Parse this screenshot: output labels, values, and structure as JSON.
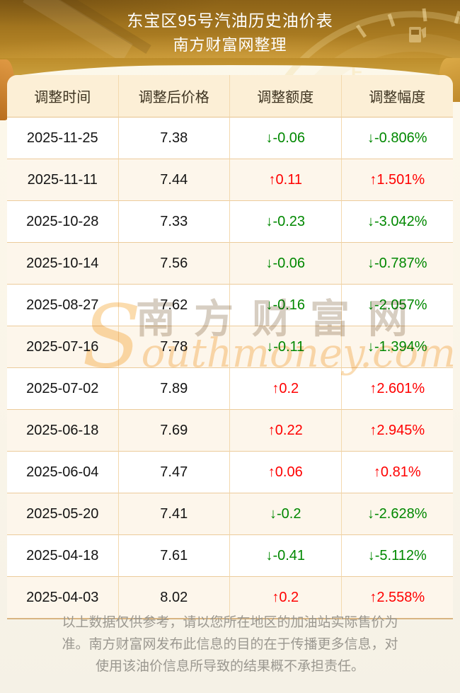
{
  "header": {
    "title": "东宝区95号汽油历史油价表",
    "subtitle": "南方财富网整理"
  },
  "chart_data": {
    "type": "table",
    "title": "东宝区95号汽油历史油价表",
    "subtitle": "南方财富网整理",
    "columns": [
      "调整时间",
      "调整后价格",
      "调整额度",
      "调整幅度"
    ],
    "rows": [
      {
        "date": "2025-11-25",
        "price": "7.38",
        "change": -0.06,
        "change_display": "↓-0.06",
        "percent": "-0.806%",
        "percent_display": "↓-0.806%",
        "direction": "down"
      },
      {
        "date": "2025-11-11",
        "price": "7.44",
        "change": 0.11,
        "change_display": "↑0.11",
        "percent": "1.501%",
        "percent_display": "↑1.501%",
        "direction": "up"
      },
      {
        "date": "2025-10-28",
        "price": "7.33",
        "change": -0.23,
        "change_display": "↓-0.23",
        "percent": "-3.042%",
        "percent_display": "↓-3.042%",
        "direction": "down"
      },
      {
        "date": "2025-10-14",
        "price": "7.56",
        "change": -0.06,
        "change_display": "↓-0.06",
        "percent": "-0.787%",
        "percent_display": "↓-0.787%",
        "direction": "down"
      },
      {
        "date": "2025-08-27",
        "price": "7.62",
        "change": -0.16,
        "change_display": "↓-0.16",
        "percent": "-2.057%",
        "percent_display": "↓-2.057%",
        "direction": "down"
      },
      {
        "date": "2025-07-16",
        "price": "7.78",
        "change": -0.11,
        "change_display": "↓-0.11",
        "percent": "-1.394%",
        "percent_display": "↓-1.394%",
        "direction": "down"
      },
      {
        "date": "2025-07-02",
        "price": "7.89",
        "change": 0.2,
        "change_display": "↑0.2",
        "percent": "2.601%",
        "percent_display": "↑2.601%",
        "direction": "up"
      },
      {
        "date": "2025-06-18",
        "price": "7.69",
        "change": 0.22,
        "change_display": "↑0.22",
        "percent": "2.945%",
        "percent_display": "↑2.945%",
        "direction": "up"
      },
      {
        "date": "2025-06-04",
        "price": "7.47",
        "change": 0.06,
        "change_display": "↑0.06",
        "percent": "0.81%",
        "percent_display": "↑0.81%",
        "direction": "up"
      },
      {
        "date": "2025-05-20",
        "price": "7.41",
        "change": -0.2,
        "change_display": "↓-0.2",
        "percent": "-2.628%",
        "percent_display": "↓-2.628%",
        "direction": "down"
      },
      {
        "date": "2025-04-18",
        "price": "7.61",
        "change": -0.41,
        "change_display": "↓-0.41",
        "percent": "-5.112%",
        "percent_display": "↓-5.112%",
        "direction": "down"
      },
      {
        "date": "2025-04-03",
        "price": "8.02",
        "change": 0.2,
        "change_display": "↑0.2",
        "percent": "2.558%",
        "percent_display": "↑2.558%",
        "direction": "up"
      }
    ]
  },
  "watermark": {
    "cn": "南方财富网",
    "en": "Southmoney.com"
  },
  "footer": {
    "disclaimer": "以上数据仅供参考，请以您所在地区的加油站实际售价为准。南方财富网发布此信息的目的在于传播更多信息，对使用该油价信息所导致的结果概不承担责任。"
  },
  "colors": {
    "up": "#ff0000",
    "down": "#008800",
    "header_gold": "#a1741e",
    "table_header_bg": "#fcefd6",
    "alt_row_bg": "#fdf6eb",
    "border": "#eccb9b"
  }
}
